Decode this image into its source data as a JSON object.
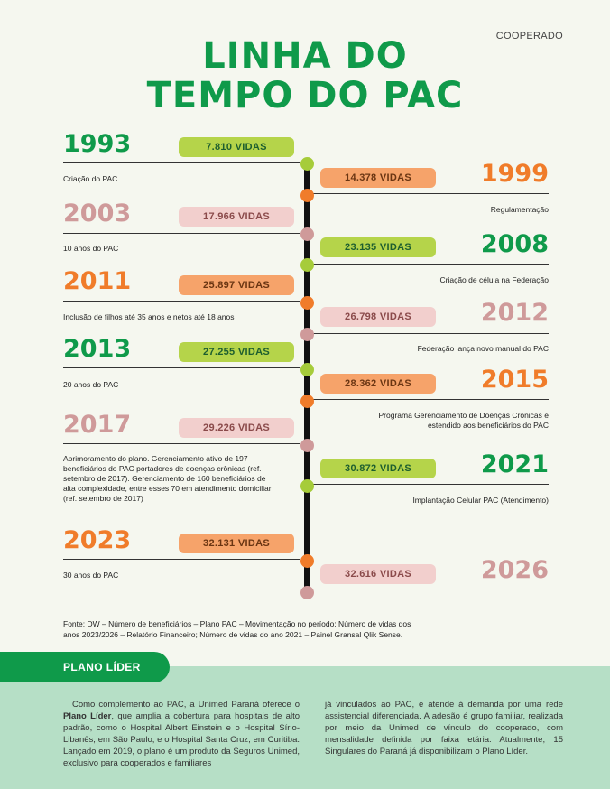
{
  "header": {
    "section": "COOPERADO",
    "title_line1": "LINHA DO",
    "title_line2": "TEMPO DO PAC"
  },
  "timeline": [
    {
      "year": "1993",
      "vidas": "7.810 VIDAS",
      "desc": "Criação do PAC"
    },
    {
      "year": "1999",
      "vidas": "14.378 VIDAS",
      "desc": "Regulamentação"
    },
    {
      "year": "2003",
      "vidas": "17.966 VIDAS",
      "desc": "10 anos do PAC"
    },
    {
      "year": "2008",
      "vidas": "23.135 VIDAS",
      "desc": "Criação de célula na Federação"
    },
    {
      "year": "2011",
      "vidas": "25.897 VIDAS",
      "desc": "Inclusão de filhos até 35 anos e netos até 18 anos"
    },
    {
      "year": "2012",
      "vidas": "26.798 VIDAS",
      "desc": "Federação lança novo manual do PAC"
    },
    {
      "year": "2013",
      "vidas": "27.255 VIDAS",
      "desc": "20 anos do PAC"
    },
    {
      "year": "2015",
      "vidas": "28.362 VIDAS",
      "desc_line1": "Programa Gerenciamento de Doenças Crônicas é",
      "desc_line2": "estendido aos beneficiários do PAC"
    },
    {
      "year": "2017",
      "vidas": "29.226 VIDAS",
      "desc_lines": [
        "Aprimoramento do plano. Gerenciamento ativo de 197",
        "beneficiários do PAC portadores de doenças crônicas (ref.",
        "setembro de 2017). Gerenciamento de 160 beneficiários de",
        "alta complexidade, entre esses 70 em atendimento domiciliar",
        "(ref. setembro de 2017)"
      ]
    },
    {
      "year": "2021",
      "vidas": "30.872 VIDAS",
      "desc": "Implantação Celular PAC (Atendimento)"
    },
    {
      "year": "2023",
      "vidas": "32.131 VIDAS",
      "desc": "30 anos do PAC"
    },
    {
      "year": "2026",
      "vidas": "32.616 VIDAS",
      "desc": ""
    }
  ],
  "source": {
    "line1": "Fonte: DW – Número de beneficiários – Plano PAC – Movimentação no período;  Número de vidas dos",
    "line2": "anos 2023/2026 – Relatório Financeiro;  Número de vidas do ano 2021 – Painel Gransal Qlik Sense."
  },
  "plano": {
    "badge": "PLANO LÍDER",
    "col1_a": "Como complemento ao PAC, a Unimed Paraná oferece o ",
    "col1_bold": "Plano Líder",
    "col1_b": ", que amplia a cobertura para hospitais de alto padrão, como o Hospital Albert Einstein e o Hospital Sírio-Libanês, em São Paulo, e o Hospital Santa Cruz, em Curitiba. Lançado em 2019, o plano é um produto da Seguros Unimed, exclusivo para cooperados e familiares",
    "col2": "já vinculados ao PAC, e atende à demanda por uma rede assistencial diferenciada. A adesão é grupo familiar, realizada por meio da Unimed de vínculo do cooperado, com mensalidade definida por faixa etária. Atualmente, 15 Singulares do Paraná já disponibilizam o Plano Líder."
  },
  "colors": {
    "green": "#0f9a4a",
    "orange": "#f07c2a",
    "pink": "#cf9a9a",
    "lime": "#b5d44a"
  }
}
